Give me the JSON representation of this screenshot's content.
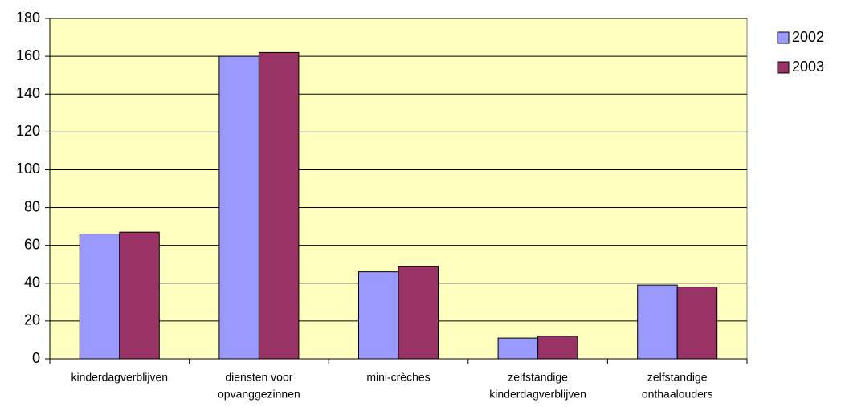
{
  "chart_data": {
    "type": "bar",
    "categories": [
      [
        "kinderdagverblijven"
      ],
      [
        "diensten voor",
        "opvanggezinnen"
      ],
      [
        "mini-crèches"
      ],
      [
        "zelfstandige",
        "kinderdagverblijven"
      ],
      [
        "zelfstandige",
        "onthaalouders"
      ]
    ],
    "series": [
      {
        "name": "2002",
        "color": "#9999ff",
        "values": [
          66,
          160,
          46,
          11,
          39
        ]
      },
      {
        "name": "2003",
        "color": "#993366",
        "values": [
          67,
          162,
          49,
          12,
          38
        ]
      }
    ],
    "ylim": [
      0,
      180
    ],
    "yticks": [
      0,
      20,
      40,
      60,
      80,
      100,
      120,
      140,
      160,
      180
    ],
    "grid": true,
    "legend": "right",
    "background": "#ffffc0"
  }
}
